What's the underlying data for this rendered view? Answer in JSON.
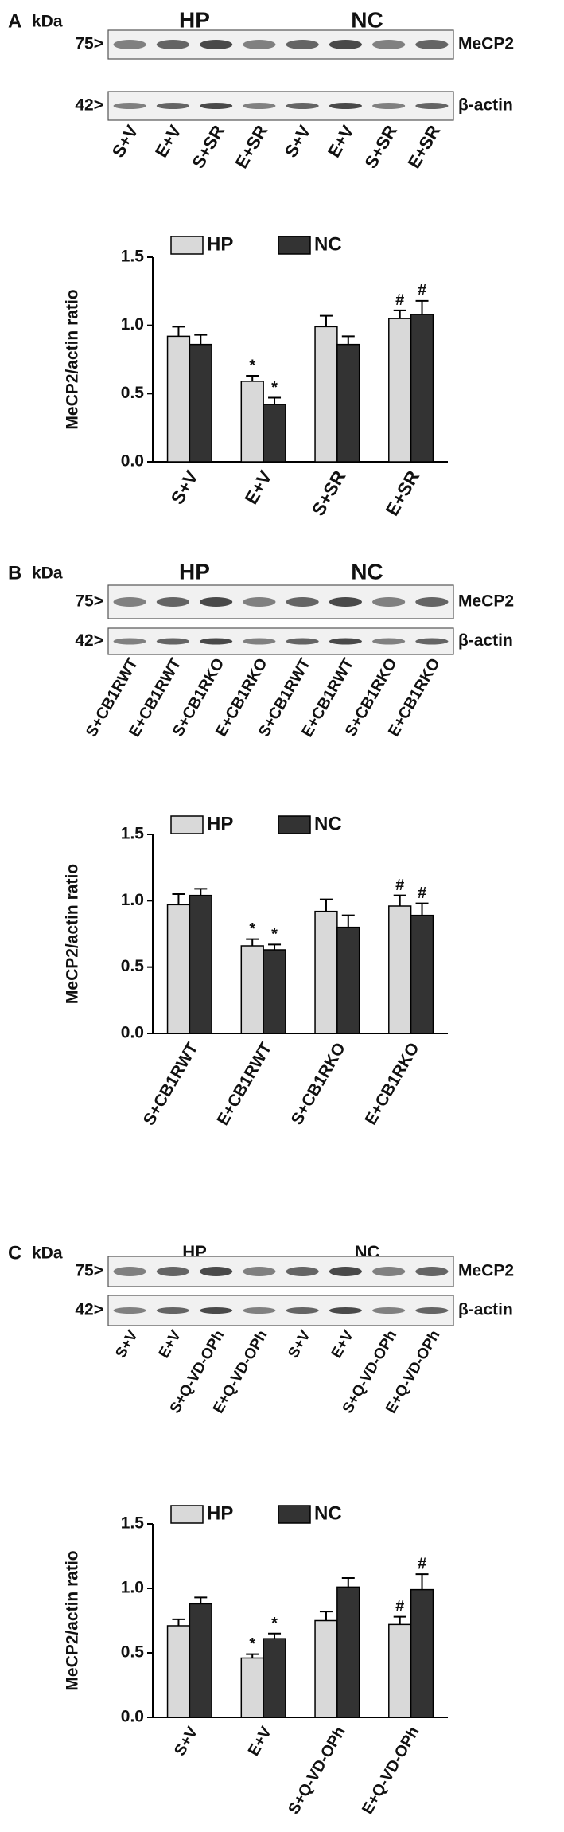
{
  "chart_data": [
    {
      "type": "bar",
      "panel": "A",
      "ylabel": "MeCP2/actin ratio",
      "categories": [
        "S+V",
        "E+V",
        "S+SR",
        "E+SR"
      ],
      "series": [
        {
          "name": "HP",
          "color": "#d9d9d9",
          "values": [
            0.92,
            0.59,
            0.99,
            1.05
          ],
          "errors": [
            0.07,
            0.04,
            0.08,
            0.06
          ],
          "labels": [
            null,
            "*",
            null,
            "#"
          ]
        },
        {
          "name": "NC",
          "color": "#333333",
          "values": [
            0.86,
            0.42,
            0.86,
            1.08
          ],
          "errors": [
            0.07,
            0.05,
            0.06,
            0.1
          ],
          "labels": [
            null,
            "*",
            null,
            "#"
          ]
        }
      ],
      "ylim": [
        0,
        1.5
      ],
      "yticks": [
        {
          "value": 0,
          "label": "0.0"
        },
        0.5,
        {
          "value": 1,
          "label": "1.0"
        },
        1.5
      ],
      "grid": false,
      "blot": {
        "unit": "kDa",
        "groups": [
          "HP",
          "NC"
        ],
        "rows": [
          {
            "marker": "75>",
            "protein": "MeCP2"
          },
          {
            "marker": "42>",
            "protein": "β-actin"
          }
        ],
        "lanes": [
          "S+V",
          "E+V",
          "S+SR",
          "E+SR",
          "S+V",
          "E+V",
          "S+SR",
          "E+SR"
        ]
      }
    },
    {
      "type": "bar",
      "panel": "B",
      "ylabel": "MeCP2/actin ratio",
      "categories": [
        "S+CB1RWT",
        "E+CB1RWT",
        "S+CB1RKO",
        "E+CB1RKO"
      ],
      "series": [
        {
          "name": "HP",
          "color": "#d9d9d9",
          "values": [
            0.97,
            0.66,
            0.92,
            0.96
          ],
          "errors": [
            0.08,
            0.05,
            0.09,
            0.08
          ],
          "labels": [
            null,
            "*",
            null,
            "#"
          ]
        },
        {
          "name": "NC",
          "color": "#333333",
          "values": [
            1.04,
            0.63,
            0.8,
            0.89
          ],
          "errors": [
            0.05,
            0.04,
            0.09,
            0.09
          ],
          "labels": [
            null,
            "*",
            null,
            "#"
          ]
        }
      ],
      "ylim": [
        0,
        1.5
      ],
      "yticks": [
        {
          "value": 0,
          "label": "0.0"
        },
        0.5,
        {
          "value": 1,
          "label": "1.0"
        },
        1.5
      ],
      "grid": false,
      "blot": {
        "unit": "kDa",
        "groups": [
          "HP",
          "NC"
        ],
        "rows": [
          {
            "marker": "75>",
            "protein": "MeCP2"
          },
          {
            "marker": "42>",
            "protein": "β-actin"
          }
        ],
        "lanes": [
          "S+CB1RWT",
          "E+CB1RWT",
          "S+CB1RKO",
          "E+CB1RKO",
          "S+CB1RWT",
          "E+CB1RWT",
          "S+CB1RKO",
          "E+CB1RKO"
        ]
      }
    },
    {
      "type": "bar",
      "panel": "C",
      "ylabel": "MeCP2/actin ratio",
      "categories": [
        "S+V",
        "E+V",
        "S+Q-VD-OPh",
        "E+Q-VD-OPh"
      ],
      "series": [
        {
          "name": "HP",
          "color": "#d9d9d9",
          "values": [
            0.71,
            0.46,
            0.75,
            0.72
          ],
          "errors": [
            0.05,
            0.03,
            0.07,
            0.06
          ],
          "labels": [
            null,
            "*",
            null,
            "#"
          ]
        },
        {
          "name": "NC",
          "color": "#333333",
          "values": [
            0.88,
            0.61,
            1.01,
            0.99
          ],
          "errors": [
            0.05,
            0.04,
            0.07,
            0.12
          ],
          "labels": [
            null,
            "*",
            null,
            "#"
          ]
        }
      ],
      "ylim": [
        0,
        1.5
      ],
      "yticks": [
        {
          "value": 0,
          "label": "0.0"
        },
        0.5,
        {
          "value": 1,
          "label": "1.0"
        },
        1.5
      ],
      "grid": false,
      "blot": {
        "unit": "kDa",
        "groups": [
          "HP",
          "NC"
        ],
        "rows": [
          {
            "marker": "75>",
            "protein": "MeCP2"
          },
          {
            "marker": "42>",
            "protein": "β-actin"
          }
        ],
        "lanes": [
          "S+V",
          "E+V",
          "S+Q-VD-OPh",
          "E+Q-VD-OPh",
          "S+V",
          "E+V",
          "S+Q-VD-OPh",
          "E+Q-VD-OPh"
        ]
      }
    }
  ]
}
